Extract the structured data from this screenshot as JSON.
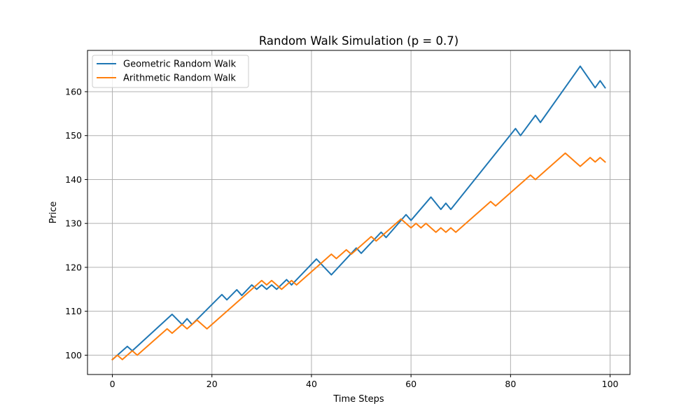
{
  "chart_data": {
    "type": "line",
    "title": "Random Walk Simulation (p = 0.7)",
    "xlabel": "Time Steps",
    "ylabel": "Price",
    "xlim": [
      -5,
      104
    ],
    "ylim": [
      95.6,
      169.4
    ],
    "xticks": [
      0,
      20,
      40,
      60,
      80,
      100
    ],
    "yticks": [
      100,
      110,
      120,
      130,
      140,
      150,
      160
    ],
    "grid": true,
    "legend_position": "top-left",
    "series": [
      {
        "name": "Geometric Random Walk",
        "color": "#1f77b4",
        "points": [
          [
            0,
            99
          ],
          [
            3,
            102
          ],
          [
            4,
            101
          ],
          [
            12,
            109.3
          ],
          [
            14,
            107
          ],
          [
            15,
            108.3
          ],
          [
            16,
            107
          ],
          [
            22,
            113.8
          ],
          [
            23,
            112.6
          ],
          [
            25,
            114.9
          ],
          [
            26,
            113.6
          ],
          [
            28,
            116
          ],
          [
            29,
            115
          ],
          [
            30,
            116
          ],
          [
            31,
            115
          ],
          [
            32,
            116
          ],
          [
            33,
            115
          ],
          [
            35,
            117.2
          ],
          [
            36,
            116
          ],
          [
            41,
            121.9
          ],
          [
            44,
            118.3
          ],
          [
            49,
            124.4
          ],
          [
            50,
            123.2
          ],
          [
            54,
            128
          ],
          [
            55,
            126.8
          ],
          [
            59,
            132
          ],
          [
            60,
            130.7
          ],
          [
            64,
            136
          ],
          [
            66,
            133.2
          ],
          [
            67,
            134.6
          ],
          [
            68,
            133.2
          ],
          [
            81,
            151.6
          ],
          [
            82,
            150
          ],
          [
            85,
            154.6
          ],
          [
            86,
            153
          ],
          [
            94,
            165.8
          ],
          [
            97,
            160.9
          ],
          [
            98,
            162.5
          ],
          [
            99,
            160.9
          ]
        ]
      },
      {
        "name": "Arithmetic Random Walk",
        "color": "#ff7f0e",
        "points": [
          [
            0,
            99
          ],
          [
            1,
            100
          ],
          [
            2,
            99
          ],
          [
            3,
            100
          ],
          [
            4,
            101
          ],
          [
            5,
            100
          ],
          [
            11,
            106
          ],
          [
            12,
            105
          ],
          [
            14,
            107
          ],
          [
            15,
            106
          ],
          [
            17,
            108
          ],
          [
            19,
            106
          ],
          [
            30,
            117
          ],
          [
            31,
            116
          ],
          [
            32,
            117
          ],
          [
            34,
            115
          ],
          [
            36,
            117
          ],
          [
            37,
            116
          ],
          [
            44,
            123
          ],
          [
            45,
            122
          ],
          [
            47,
            124
          ],
          [
            48,
            123
          ],
          [
            52,
            127
          ],
          [
            53,
            126
          ],
          [
            58,
            131
          ],
          [
            60,
            129
          ],
          [
            61,
            130
          ],
          [
            62,
            129
          ],
          [
            63,
            130
          ],
          [
            65,
            128
          ],
          [
            66,
            129
          ],
          [
            67,
            128
          ],
          [
            68,
            129
          ],
          [
            69,
            128
          ],
          [
            76,
            135
          ],
          [
            77,
            134
          ],
          [
            84,
            141
          ],
          [
            85,
            140
          ],
          [
            91,
            146
          ],
          [
            94,
            143
          ],
          [
            96,
            145
          ],
          [
            97,
            144
          ],
          [
            98,
            145
          ],
          [
            99,
            144
          ]
        ]
      }
    ]
  }
}
